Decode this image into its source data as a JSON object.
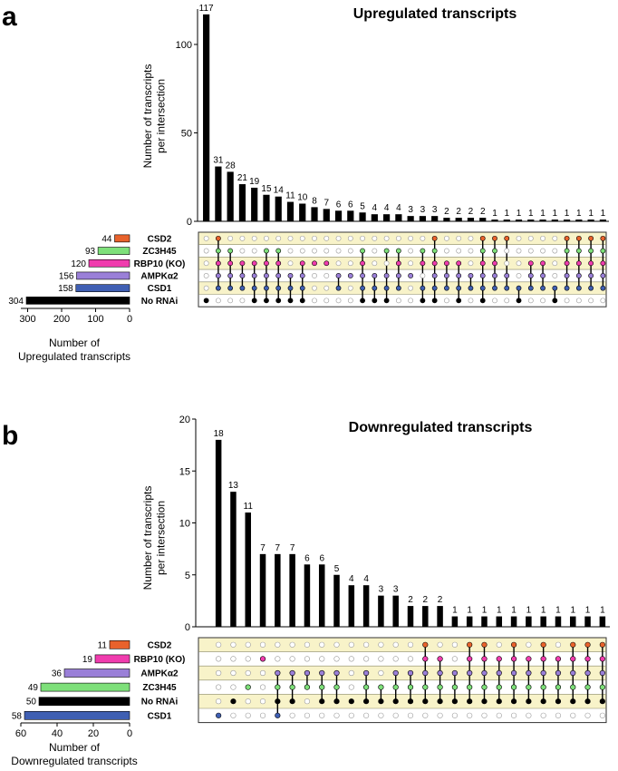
{
  "colors": {
    "bar": "#000000",
    "band": "#f8f3c9",
    "band_border": "#8a8a6a",
    "empty_dot": "#ffffff",
    "sets": {
      "CSD2": "#e8622c",
      "ZC3H45": "#7ee07a",
      "RBP10 (KO)": "#f03cae",
      "AMPKα2": "#9a7fd8",
      "CSD1": "#3f5fb3",
      "No RNAi": "#000000"
    }
  },
  "chart_data": [
    {
      "type": "bar",
      "panel_label": "a",
      "title": "Upregulated transcripts",
      "ylabel": [
        "Number of transcripts",
        "per intersection"
      ],
      "ylim": [
        0,
        120
      ],
      "yticks": [
        0,
        50,
        100
      ],
      "values": [
        117,
        31,
        28,
        21,
        19,
        15,
        14,
        11,
        10,
        8,
        7,
        6,
        6,
        5,
        4,
        4,
        4,
        3,
        3,
        3,
        2,
        2,
        2,
        2,
        1,
        1,
        1,
        1,
        1,
        1,
        1,
        1,
        1,
        1
      ],
      "sets": {
        "names": [
          "CSD2",
          "ZC3H45",
          "RBP10 (KO)",
          "AMPKα2",
          "CSD1",
          "No RNAi"
        ],
        "sizes": [
          44,
          93,
          120,
          156,
          158,
          304
        ],
        "xlabel": [
          "Number of",
          "Upregulated transcripts"
        ],
        "xlim": [
          0,
          320
        ],
        "xticks": [
          300,
          200,
          100,
          0
        ]
      },
      "membership": [
        [
          5
        ],
        [
          0,
          1,
          2,
          3,
          4
        ],
        [
          1,
          2,
          3,
          4
        ],
        [
          2,
          3,
          4
        ],
        [
          2,
          3,
          4,
          5
        ],
        [
          1,
          2,
          3,
          4,
          5
        ],
        [
          1,
          2,
          3,
          4,
          5
        ],
        [
          3,
          4,
          5
        ],
        [
          2,
          3,
          4,
          5
        ],
        [
          2
        ],
        [
          2
        ],
        [
          3,
          4
        ],
        [
          3
        ],
        [
          1,
          2,
          3,
          4,
          5
        ],
        [
          3,
          4,
          5
        ],
        [
          1,
          3,
          4,
          5
        ],
        [
          1,
          2,
          3,
          4
        ],
        [
          3
        ],
        [
          1,
          2,
          4,
          5
        ],
        [
          0,
          1,
          2,
          3,
          4,
          5
        ],
        [
          2,
          3,
          4
        ],
        [
          2,
          3,
          4,
          5
        ],
        [
          3,
          4
        ],
        [
          0,
          1,
          2,
          3,
          4,
          5
        ],
        [
          0,
          1,
          2,
          3,
          4
        ],
        [
          0,
          3,
          4
        ],
        [
          4,
          5
        ],
        [
          2,
          3,
          4
        ],
        [
          2,
          3,
          4
        ],
        [
          4,
          5
        ],
        [
          0,
          1,
          2,
          3,
          4
        ],
        [
          0,
          1,
          2,
          3,
          4
        ],
        [
          0,
          1,
          2,
          3,
          4
        ],
        [
          0,
          1,
          2,
          3,
          4
        ]
      ]
    },
    {
      "type": "bar",
      "panel_label": "b",
      "title": "Downregulated transcripts",
      "ylabel": [
        "Number of transcripts",
        "per intersection"
      ],
      "ylim": [
        0,
        20
      ],
      "yticks": [
        0,
        5,
        10,
        15,
        20
      ],
      "values": [
        18,
        13,
        11,
        7,
        7,
        7,
        6,
        6,
        5,
        4,
        4,
        3,
        3,
        2,
        2,
        2,
        1,
        1,
        1,
        1,
        1,
        1,
        1,
        1,
        1,
        1,
        1
      ],
      "sets": {
        "names": [
          "CSD2",
          "RBP10 (KO)",
          "AMPKα2",
          "ZC3H45",
          "No RNAi",
          "CSD1"
        ],
        "sizes": [
          11,
          19,
          36,
          49,
          50,
          58
        ],
        "xlabel": [
          "Number of",
          "Downregulated transcripts"
        ],
        "xlim": [
          0,
          60
        ],
        "xticks": [
          60,
          40,
          20,
          0
        ]
      },
      "membership": [
        [
          5
        ],
        [
          4
        ],
        [
          3
        ],
        [
          1
        ],
        [
          2,
          3,
          4,
          5
        ],
        [
          2,
          3,
          4
        ],
        [
          2,
          3
        ],
        [
          2,
          3,
          4
        ],
        [
          2,
          3,
          4
        ],
        [
          4
        ],
        [
          2,
          3,
          4
        ],
        [
          3,
          4
        ],
        [
          2,
          3,
          4
        ],
        [
          2,
          3,
          4
        ],
        [
          0,
          1,
          2,
          3,
          4
        ],
        [
          1,
          2,
          3,
          4
        ],
        [
          2,
          3,
          4
        ],
        [
          0,
          1,
          2,
          3,
          4
        ],
        [
          0,
          1,
          2,
          3,
          4
        ],
        [
          1,
          2,
          3,
          4
        ],
        [
          0,
          1,
          2,
          3,
          4
        ],
        [
          1,
          2,
          3,
          4
        ],
        [
          0,
          1,
          2,
          3,
          4
        ],
        [
          1,
          2,
          3,
          4
        ],
        [
          0,
          1,
          2,
          3,
          4
        ],
        [
          0,
          1,
          2,
          3,
          4
        ],
        [
          0,
          1,
          2,
          3,
          4
        ]
      ]
    }
  ]
}
